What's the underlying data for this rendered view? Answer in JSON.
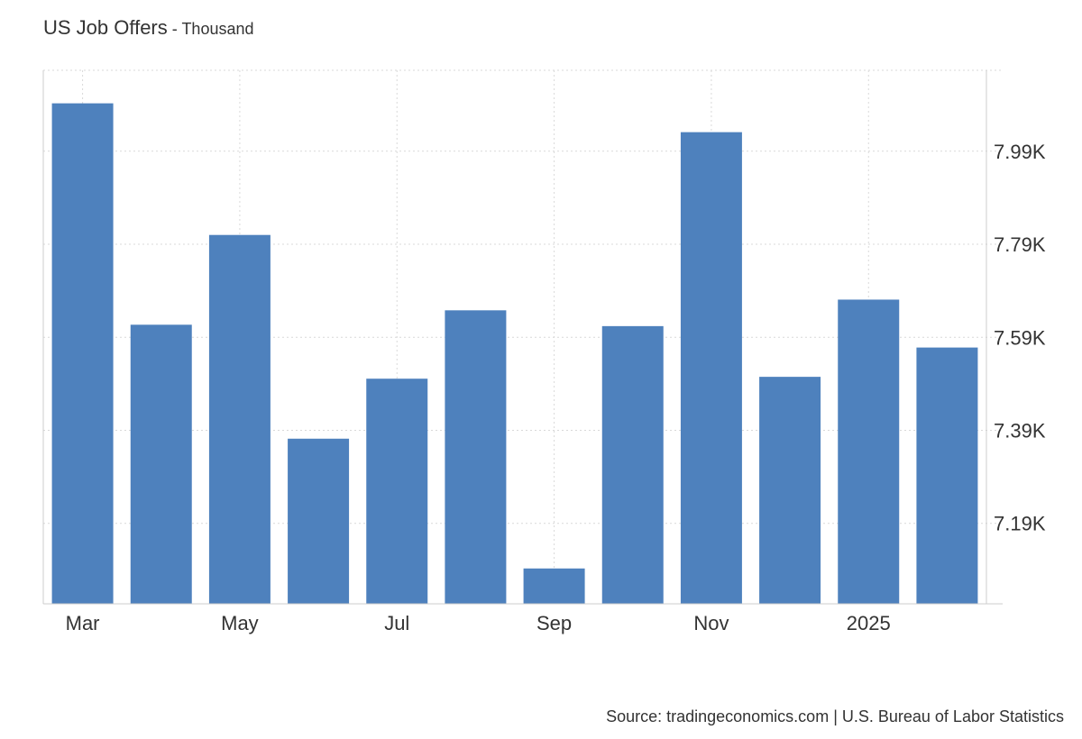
{
  "header": {
    "title": "US Job Offers",
    "separator": " - ",
    "unit": "Thousand"
  },
  "source": "Source: tradingeconomics.com | U.S. Bureau of Labor Statistics",
  "colors": {
    "bar": "#4e81bd",
    "grid": "#d9d9d9",
    "axis": "#cccccc",
    "text": "#333333"
  },
  "chart_data": {
    "type": "bar",
    "title": "US Job Offers",
    "subtitle": "Thousand",
    "categories": [
      "2024-03",
      "2024-04",
      "2024-05",
      "2024-06",
      "2024-07",
      "2024-08",
      "2024-09",
      "2024-10",
      "2024-11",
      "2024-12",
      "2025-01",
      "2025-02"
    ],
    "x_tick_labels": [
      {
        "category": "2024-03",
        "label": "Mar"
      },
      {
        "category": "2024-05",
        "label": "May"
      },
      {
        "category": "2024-07",
        "label": "Jul"
      },
      {
        "category": "2024-09",
        "label": "Sep"
      },
      {
        "category": "2024-11",
        "label": "Nov"
      },
      {
        "category": "2025-01",
        "label": "2025"
      }
    ],
    "values": [
      8.093,
      7.617,
      7.81,
      7.372,
      7.501,
      7.648,
      7.093,
      7.614,
      8.031,
      7.505,
      7.671,
      7.568
    ],
    "y_ticks": [
      7.19,
      7.39,
      7.59,
      7.79,
      7.99
    ],
    "y_tick_labels": [
      "7.19K",
      "7.39K",
      "7.59K",
      "7.79K",
      "7.99K"
    ],
    "ylim": [
      7.017,
      8.164
    ],
    "y_axis_side": "right",
    "grid": true,
    "legend": "none"
  }
}
